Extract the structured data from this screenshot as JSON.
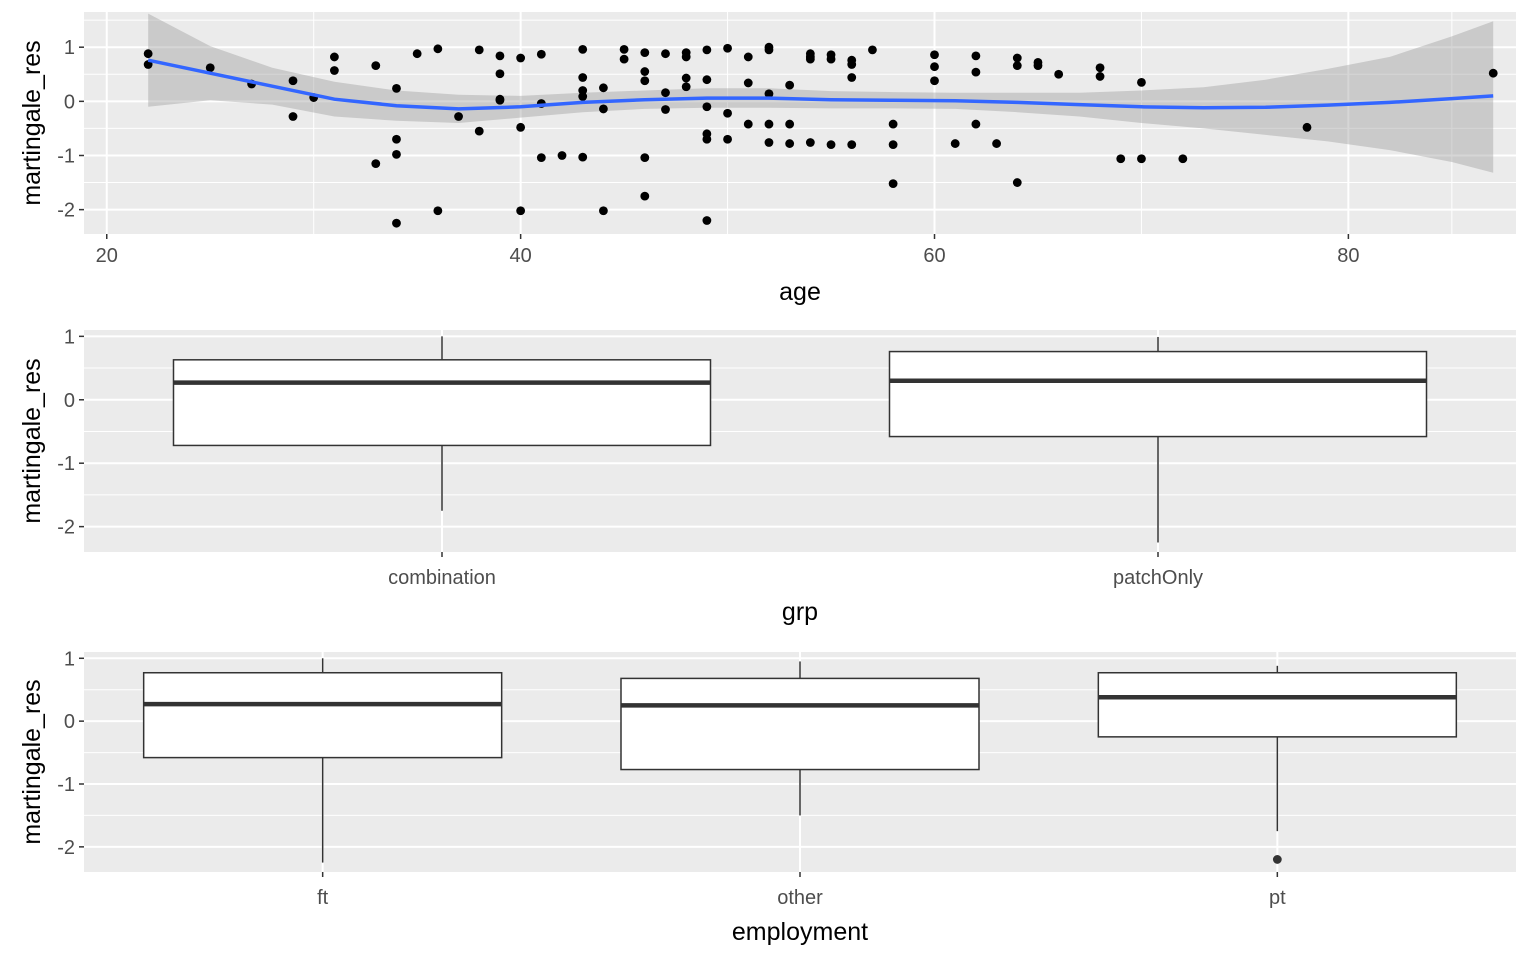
{
  "colors": {
    "panel_bg": "#ebebeb",
    "grid_major": "#ffffff",
    "point": "#000000",
    "smooth_line": "#3366ff",
    "ribbon": "#999999",
    "box_line": "#333333",
    "box_fill": "#ffffff"
  },
  "chart_data": [
    {
      "type": "scatter",
      "xlabel": "age",
      "ylabel": "martingale_res",
      "x_ticks": [
        20,
        40,
        60,
        80
      ],
      "x_tick_labels": [
        "20",
        "40",
        "60",
        "80"
      ],
      "y_ticks": [
        -2,
        -1,
        0,
        1
      ],
      "y_tick_labels": [
        "-2",
        "-1",
        "0",
        "1"
      ],
      "xlim": [
        18.9,
        88.1
      ],
      "ylim": [
        -2.45,
        1.65
      ],
      "grid": true,
      "points": [
        [
          22,
          0.88
        ],
        [
          22,
          0.68
        ],
        [
          25,
          0.62
        ],
        [
          27,
          0.32
        ],
        [
          29,
          0.38
        ],
        [
          29,
          -0.28
        ],
        [
          30,
          0.07
        ],
        [
          31,
          0.82
        ],
        [
          31,
          0.57
        ],
        [
          33,
          0.66
        ],
        [
          33,
          -1.15
        ],
        [
          34,
          0.24
        ],
        [
          34,
          -0.7
        ],
        [
          34,
          -0.98
        ],
        [
          34,
          -2.25
        ],
        [
          35,
          0.88
        ],
        [
          36,
          0.97
        ],
        [
          36,
          -2.02
        ],
        [
          37,
          -0.28
        ],
        [
          38,
          0.95
        ],
        [
          38,
          -0.55
        ],
        [
          39,
          0.84
        ],
        [
          39,
          0.51
        ],
        [
          39,
          0.04
        ],
        [
          39,
          0.02
        ],
        [
          40,
          0.8
        ],
        [
          40,
          -0.48
        ],
        [
          40,
          -2.02
        ],
        [
          41,
          0.87
        ],
        [
          41,
          -0.04
        ],
        [
          41,
          -1.04
        ],
        [
          42,
          -1.0
        ],
        [
          43,
          0.96
        ],
        [
          43,
          0.44
        ],
        [
          43,
          0.2
        ],
        [
          43,
          0.09
        ],
        [
          43,
          -1.03
        ],
        [
          44,
          0.25
        ],
        [
          44,
          -0.14
        ],
        [
          44,
          -2.02
        ],
        [
          45,
          0.96
        ],
        [
          45,
          0.78
        ],
        [
          46,
          0.9
        ],
        [
          46,
          0.55
        ],
        [
          46,
          0.38
        ],
        [
          46,
          -1.04
        ],
        [
          46,
          -1.75
        ],
        [
          47,
          0.88
        ],
        [
          47,
          0.16
        ],
        [
          47,
          -0.15
        ],
        [
          48,
          0.9
        ],
        [
          48,
          0.82
        ],
        [
          48,
          0.43
        ],
        [
          48,
          0.27
        ],
        [
          49,
          0.95
        ],
        [
          49,
          0.4
        ],
        [
          49,
          -0.1
        ],
        [
          49,
          -0.6
        ],
        [
          49,
          -0.7
        ],
        [
          49,
          -2.2
        ],
        [
          50,
          0.98
        ],
        [
          50,
          -0.22
        ],
        [
          50,
          -0.7
        ],
        [
          51,
          0.82
        ],
        [
          51,
          0.34
        ],
        [
          51,
          -0.42
        ],
        [
          52,
          1.0
        ],
        [
          52,
          0.95
        ],
        [
          52,
          0.14
        ],
        [
          52,
          -0.42
        ],
        [
          52,
          -0.76
        ],
        [
          53,
          0.3
        ],
        [
          53,
          -0.42
        ],
        [
          53,
          -0.78
        ],
        [
          54,
          0.88
        ],
        [
          54,
          0.82
        ],
        [
          54,
          0.78
        ],
        [
          54,
          -0.76
        ],
        [
          55,
          0.86
        ],
        [
          55,
          0.78
        ],
        [
          55,
          -0.8
        ],
        [
          56,
          0.76
        ],
        [
          56,
          0.68
        ],
        [
          56,
          0.44
        ],
        [
          56,
          -0.8
        ],
        [
          57,
          0.95
        ],
        [
          58,
          -0.42
        ],
        [
          58,
          -0.8
        ],
        [
          58,
          -1.52
        ],
        [
          60,
          0.86
        ],
        [
          60,
          0.64
        ],
        [
          60,
          0.38
        ],
        [
          61,
          -0.78
        ],
        [
          62,
          0.84
        ],
        [
          62,
          0.54
        ],
        [
          62,
          -0.42
        ],
        [
          63,
          -0.78
        ],
        [
          64,
          0.8
        ],
        [
          64,
          0.66
        ],
        [
          64,
          -1.5
        ],
        [
          65,
          0.72
        ],
        [
          65,
          0.66
        ],
        [
          66,
          0.5
        ],
        [
          68,
          0.62
        ],
        [
          68,
          0.46
        ],
        [
          69,
          -1.06
        ],
        [
          70,
          0.35
        ],
        [
          70,
          -1.06
        ],
        [
          72,
          -1.06
        ],
        [
          78,
          -0.48
        ],
        [
          87,
          0.52
        ]
      ],
      "smooth": [
        [
          22,
          0.76,
          1.62,
          -0.1
        ],
        [
          25,
          0.52,
          1.02,
          0.02
        ],
        [
          28,
          0.28,
          0.62,
          -0.06
        ],
        [
          31,
          0.04,
          0.36,
          -0.28
        ],
        [
          34,
          -0.08,
          0.2,
          -0.36
        ],
        [
          37,
          -0.14,
          0.12,
          -0.4
        ],
        [
          40,
          -0.1,
          0.1,
          -0.3
        ],
        [
          43,
          -0.02,
          0.16,
          -0.2
        ],
        [
          46,
          0.03,
          0.2,
          -0.14
        ],
        [
          49,
          0.06,
          0.24,
          -0.12
        ],
        [
          52,
          0.06,
          0.24,
          -0.12
        ],
        [
          55,
          0.03,
          0.19,
          -0.13
        ],
        [
          58,
          0.02,
          0.17,
          -0.13
        ],
        [
          61,
          0.01,
          0.16,
          -0.14
        ],
        [
          64,
          -0.02,
          0.16,
          -0.2
        ],
        [
          67,
          -0.06,
          0.16,
          -0.28
        ],
        [
          70,
          -0.1,
          0.2,
          -0.4
        ],
        [
          73,
          -0.12,
          0.26,
          -0.5
        ],
        [
          76,
          -0.11,
          0.4,
          -0.62
        ],
        [
          79,
          -0.07,
          0.6,
          -0.74
        ],
        [
          82,
          -0.02,
          0.82,
          -0.9
        ],
        [
          85,
          0.05,
          1.2,
          -1.12
        ],
        [
          87,
          0.1,
          1.48,
          -1.32
        ]
      ]
    },
    {
      "type": "boxplot",
      "xlabel": "grp",
      "ylabel": "martingale_res",
      "categories": [
        "combination",
        "patchOnly"
      ],
      "y_ticks": [
        -2,
        -1,
        0,
        1
      ],
      "y_tick_labels": [
        "-2",
        "-1",
        "0",
        "1"
      ],
      "ylim": [
        -2.4,
        1.1
      ],
      "grid": true,
      "boxes": [
        {
          "category": "combination",
          "whisker_low": -1.75,
          "q1": -0.72,
          "median": 0.27,
          "q3": 0.63,
          "whisker_high": 1.0,
          "outliers": []
        },
        {
          "category": "patchOnly",
          "whisker_low": -2.25,
          "q1": -0.58,
          "median": 0.3,
          "q3": 0.76,
          "whisker_high": 0.99,
          "outliers": []
        }
      ]
    },
    {
      "type": "boxplot",
      "xlabel": "employment",
      "ylabel": "martingale_res",
      "categories": [
        "ft",
        "other",
        "pt"
      ],
      "y_ticks": [
        -2,
        -1,
        0,
        1
      ],
      "y_tick_labels": [
        "-2",
        "-1",
        "0",
        "1"
      ],
      "ylim": [
        -2.4,
        1.1
      ],
      "grid": true,
      "boxes": [
        {
          "category": "ft",
          "whisker_low": -2.25,
          "q1": -0.58,
          "median": 0.27,
          "q3": 0.77,
          "whisker_high": 1.0,
          "outliers": []
        },
        {
          "category": "other",
          "whisker_low": -1.5,
          "q1": -0.77,
          "median": 0.25,
          "q3": 0.68,
          "whisker_high": 0.95,
          "outliers": []
        },
        {
          "category": "pt",
          "whisker_low": -1.75,
          "q1": -0.25,
          "median": 0.38,
          "q3": 0.77,
          "whisker_high": 0.88,
          "outliers": [
            -2.2
          ]
        }
      ]
    }
  ]
}
